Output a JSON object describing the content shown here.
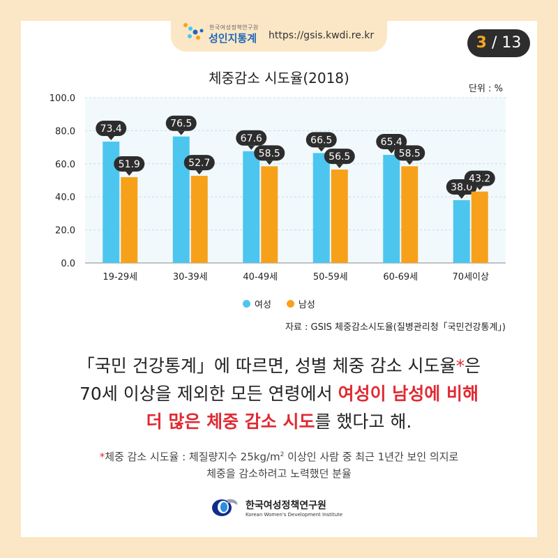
{
  "header": {
    "org_small": "한국여성정책연구원",
    "site_name": "성인지통계",
    "url": "https://gsis.kwdi.re.kr",
    "page_current": "3",
    "page_separator": " / ",
    "page_total": "13"
  },
  "chart_data": {
    "type": "bar",
    "title": "체중감소 시도율(2018)",
    "unit_label": "단위 : %",
    "categories": [
      "19-29세",
      "30-39세",
      "40-49세",
      "50-59세",
      "60-69세",
      "70세이상"
    ],
    "series": [
      {
        "name": "여성",
        "color": "#4cc6ef",
        "values": [
          73.4,
          76.5,
          67.6,
          66.5,
          65.4,
          38.0
        ]
      },
      {
        "name": "남성",
        "color": "#f7a11a",
        "values": [
          51.9,
          52.7,
          58.5,
          56.5,
          58.5,
          43.2
        ]
      }
    ],
    "ylim": [
      0,
      100
    ],
    "yticks": [
      "0.0",
      "20.0",
      "40.0",
      "60.0",
      "80.0",
      "100.0"
    ],
    "value_labels": [
      [
        "73.4",
        "76.5",
        "67.6",
        "66.5",
        "65.4",
        "38.0"
      ],
      [
        "51.9",
        "52.7",
        "58.5",
        "56.5",
        "58.5",
        "43.2"
      ]
    ],
    "grid": true,
    "legend": "bottom-center"
  },
  "source": "자료 : GSIS 체중감소시도율(질병관리청「국민건강통계」)",
  "main_text": {
    "line1_a": "「국민 건강통계」에 따르면, 성별 체중 감소 시도율",
    "line1_ast": "*",
    "line1_b": "은",
    "line2_a": "70세 이상을 제외한 모든 연령에서 ",
    "line2_hl": "여성이 남성에 비해",
    "line3_hl": "더 많은 체중 감소 시도",
    "line3_b": "를 했다고 해."
  },
  "footnote": {
    "ast": "*",
    "line1_a": "체중 감소 시도율 : 체질량지수 25kg/m",
    "line1_sup": "2",
    "line1_b": " 이상인 사람 중 최근 1년간 보인 의지로",
    "line2": "체중을 감소하려고 노력했던 분율"
  },
  "footer": {
    "org_name": "한국여성정책연구원",
    "org_eng": "Korean Women's Development Institute"
  },
  "colors": {
    "background": "#fbe7c6",
    "female": "#4cc6ef",
    "male": "#f7a11a",
    "highlight": "#e02a33",
    "label_bubble": "#2d2d2d"
  }
}
